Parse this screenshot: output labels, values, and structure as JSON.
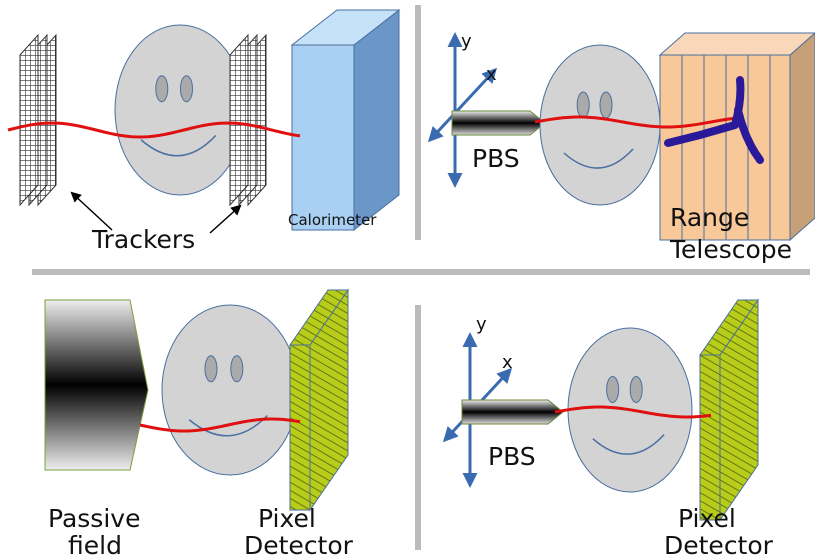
{
  "panels": [
    {
      "labels": [
        "Trackers",
        "Calorimeter"
      ]
    },
    {
      "axes": [
        "y",
        "x"
      ],
      "beam": "PBS",
      "detector": [
        "Range",
        "Telescope"
      ]
    },
    {
      "source": [
        "Passive",
        "field"
      ],
      "detector": [
        "Pixel",
        "Detector"
      ]
    },
    {
      "axes": [
        "y",
        "x"
      ],
      "beam": "PBS",
      "detector": [
        "Pixel",
        "Detector"
      ]
    }
  ]
}
